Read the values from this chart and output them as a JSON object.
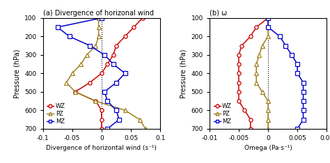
{
  "pressure": [
    100,
    150,
    200,
    250,
    300,
    350,
    400,
    450,
    500,
    550,
    600,
    650,
    700
  ],
  "div_WZ": [
    0.07,
    0.055,
    0.04,
    0.025,
    0.02,
    0.01,
    0.0,
    -0.02,
    -0.045,
    -0.01,
    0.0,
    0.0,
    0.0
  ],
  "div_PZ": [
    -0.005,
    -0.005,
    -0.005,
    -0.01,
    -0.025,
    -0.035,
    -0.05,
    -0.06,
    -0.045,
    -0.01,
    0.04,
    0.065,
    0.075
  ],
  "div_MZ": [
    0.0,
    -0.075,
    -0.055,
    -0.02,
    0.005,
    0.02,
    0.04,
    0.025,
    0.005,
    0.01,
    0.025,
    0.03,
    0.01
  ],
  "omega_WZ": [
    0.0,
    -0.002,
    -0.003,
    -0.0045,
    -0.005,
    -0.005,
    -0.005,
    -0.005,
    -0.005,
    -0.005,
    -0.004,
    -0.003,
    -0.003
  ],
  "omega_PZ": [
    0.0,
    0.0,
    0.0,
    -0.001,
    -0.0015,
    -0.002,
    -0.002,
    -0.002,
    -0.001,
    0.0,
    0.0,
    0.0,
    0.0
  ],
  "omega_MZ": [
    0.0,
    0.0,
    0.002,
    0.003,
    0.004,
    0.005,
    0.005,
    0.006,
    0.006,
    0.006,
    0.006,
    0.006,
    0.005
  ],
  "color_WZ": "#cc0000",
  "color_PZ": "#a08020",
  "color_MZ": "#0000cc",
  "title_a": "(a) Divergence of horizonal wind",
  "title_b": "(b) ω",
  "xlabel_a": "Divergence of horizontal wind (s⁻¹)",
  "xlabel_b": "Omega (Pa·s⁻¹)",
  "ylabel": "Pressure (hPa)",
  "xlim_a": [
    -0.1,
    0.1
  ],
  "xlim_b": [
    -0.01,
    0.01
  ],
  "ylim": [
    700,
    100
  ],
  "xticks_a": [
    -0.1,
    -0.05,
    0,
    0.05,
    0.1
  ],
  "xticks_b": [
    -0.01,
    -0.005,
    0,
    0.005,
    0.01
  ],
  "yticks": [
    100,
    200,
    300,
    400,
    500,
    600,
    700
  ]
}
